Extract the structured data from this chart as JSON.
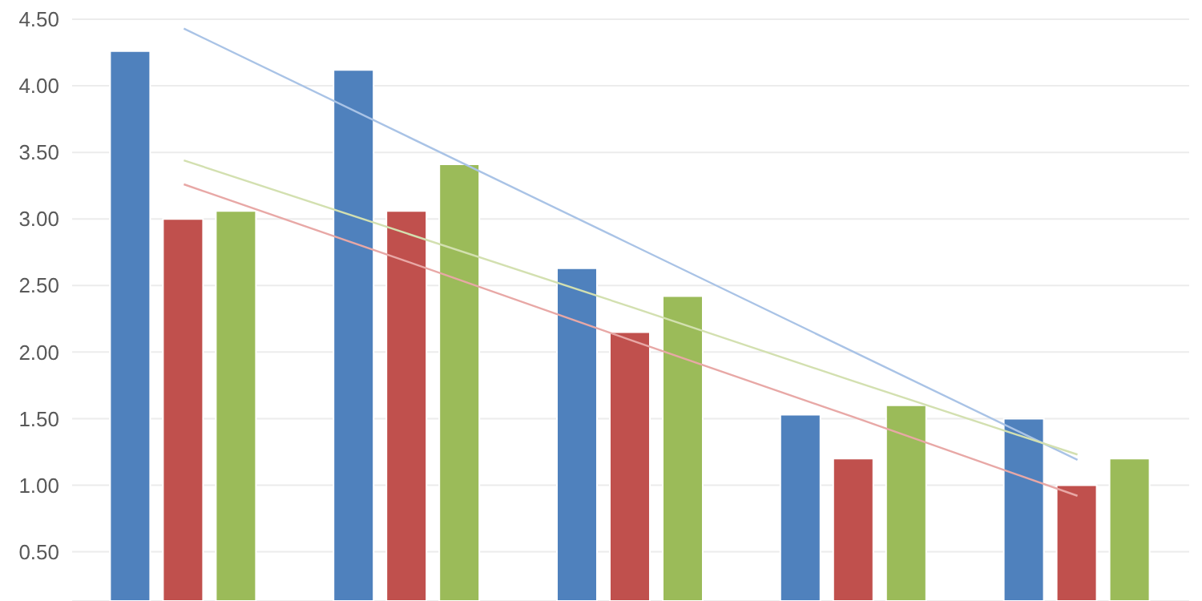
{
  "chart_data": {
    "type": "bar",
    "categories": [
      null,
      null,
      null,
      null,
      null
    ],
    "series": [
      {
        "color": "#4f81bd",
        "values": [
          4.26,
          4.12,
          2.63,
          1.53,
          1.5
        ]
      },
      {
        "color": "#c0504d",
        "values": [
          3.0,
          3.06,
          2.15,
          1.2,
          1.0
        ]
      },
      {
        "color": "#9bbb59",
        "values": [
          3.06,
          3.41,
          2.42,
          1.6,
          1.2
        ]
      },
      {
        "type": "line",
        "color": "#a9c3e6",
        "values": [
          4.43,
          3.62,
          2.81,
          2.0,
          1.19
        ]
      },
      {
        "type": "line",
        "color": "#e8a8a6",
        "values": [
          3.26,
          2.68,
          2.09,
          1.51,
          0.92
        ]
      },
      {
        "type": "line",
        "color": "#d3e0b0",
        "values": [
          3.44,
          2.89,
          2.34,
          1.78,
          1.23
        ]
      }
    ],
    "ylim": [
      0.13,
      4.5
    ],
    "yticks": [
      {
        "value": 0.5,
        "label": "0.50"
      },
      {
        "value": 1,
        "label": "1.00"
      },
      {
        "value": 1.5,
        "label": "1.50"
      },
      {
        "value": 2,
        "label": "2.00"
      },
      {
        "value": 2.5,
        "label": "2.50"
      },
      {
        "value": 3,
        "label": "3.00"
      },
      {
        "value": 3.5,
        "label": "3.50"
      },
      {
        "value": 4,
        "label": "4.00"
      },
      {
        "value": 4.5,
        "label": "4.50"
      }
    ],
    "grid": "y",
    "legend": false,
    "tick_labels": "y"
  }
}
